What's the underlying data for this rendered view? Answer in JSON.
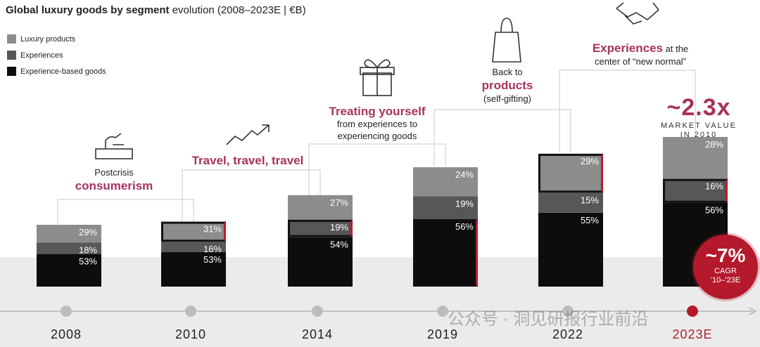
{
  "title": {
    "bold": "Global luxury goods by segment",
    "rest": " evolution (2008–2023E | €B)"
  },
  "legend": [
    {
      "label": "Luxury products",
      "color": "#8c8c8c"
    },
    {
      "label": "Experiences",
      "color": "#575757"
    },
    {
      "label": "Experience-based goods",
      "color": "#0d0d0d"
    }
  ],
  "annotations": {
    "a2008": {
      "line1": "Postcrisis",
      "highlight": "consumerism"
    },
    "a2010": {
      "highlight": "Travel, travel, travel"
    },
    "a2014": {
      "highlight": "Treating yourself",
      "line2": "from experiences to",
      "line3": "experiencing goods"
    },
    "a2019": {
      "line1": "Back to",
      "highlight": "products",
      "line3": "(self-gifting)"
    },
    "a2022": {
      "highlight": "Experiences",
      "line1_rest": " at the",
      "line2": "center of “new normal”"
    }
  },
  "multiplier": {
    "value": "~2.3x",
    "line1": "MARKET VALUE",
    "line2": "IN 2010"
  },
  "cagr": {
    "value": "~7%",
    "label": "CAGR",
    "period": "'10–'23E"
  },
  "watermark": "公众号 · 洞见研报行业前沿",
  "colors": {
    "accent": "#a8325e",
    "red": "#b01e2e",
    "products": "#8c8c8c",
    "experiences": "#575757",
    "exp_goods": "#0d0d0d"
  },
  "chart_data": {
    "type": "bar",
    "stacked": true,
    "categories": [
      "2008",
      "2010",
      "2014",
      "2019",
      "2022",
      "2023E"
    ],
    "highlight_category": "2023E",
    "series": [
      {
        "name": "Experience-based goods",
        "values": [
          53,
          53,
          54,
          56,
          55,
          56
        ],
        "labels": [
          "53%",
          "53%",
          "54%",
          "56%",
          "55%",
          "56%"
        ]
      },
      {
        "name": "Experiences",
        "values": [
          18,
          16,
          19,
          19,
          15,
          16
        ],
        "labels": [
          "18%",
          "16%",
          "19%",
          "19%",
          "15%",
          "16%"
        ]
      },
      {
        "name": "Luxury products",
        "values": [
          29,
          31,
          27,
          24,
          29,
          28
        ],
        "labels": [
          "29%",
          "31%",
          "27%",
          "24%",
          "29%",
          "28%"
        ]
      }
    ],
    "relative_total_index": [
      1.0,
      1.05,
      1.48,
      1.95,
      2.17,
      2.42
    ],
    "highlighted_segment": [
      "",
      "Luxury products",
      "Experiences",
      "Experience-based goods",
      "Luxury products",
      "Experiences"
    ],
    "ylabel": "",
    "xlabel": ""
  }
}
